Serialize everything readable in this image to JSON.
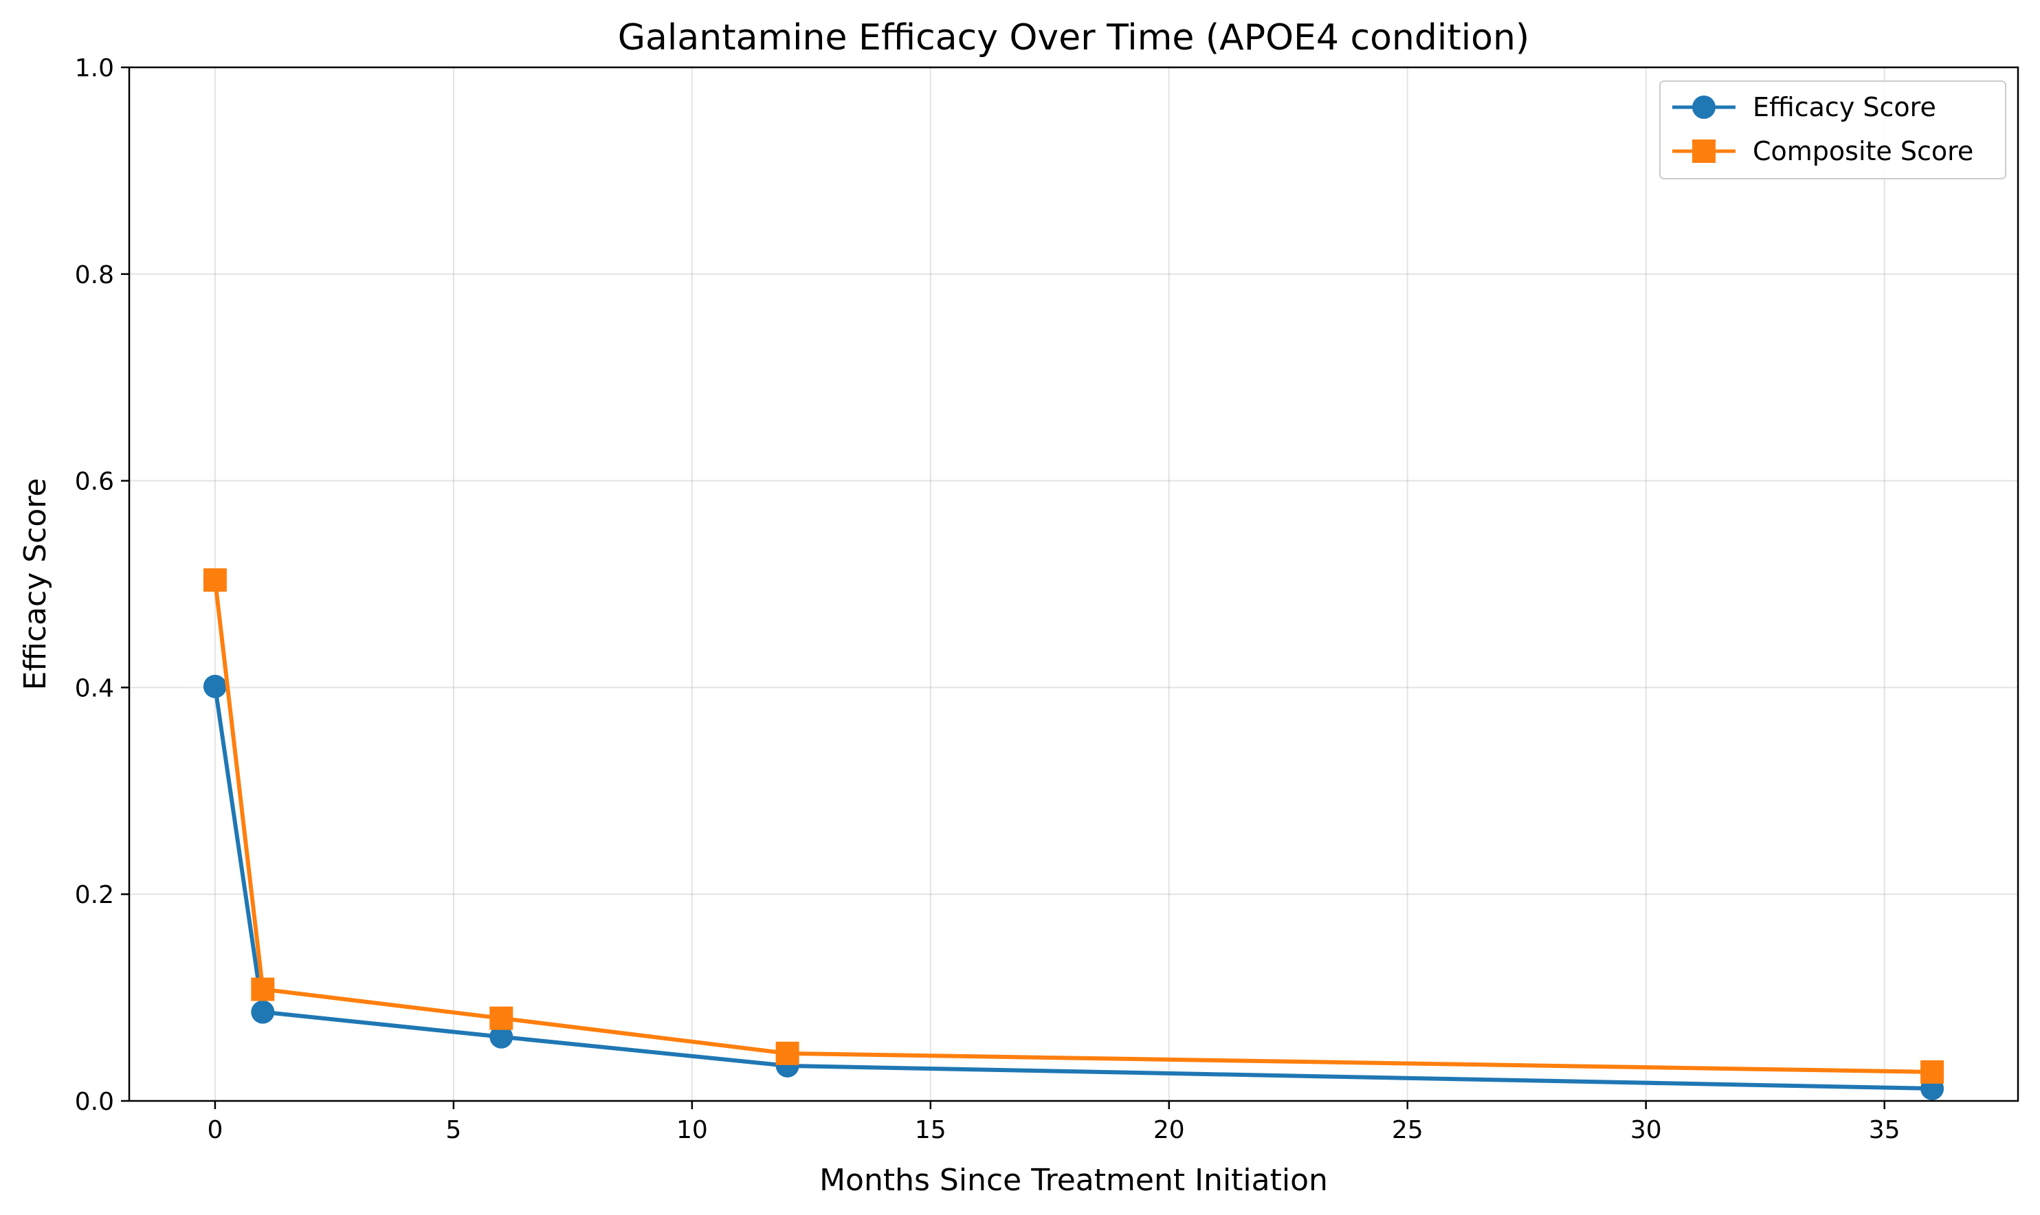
{
  "chart_data": {
    "type": "line",
    "title": "Galantamine Efficacy Over Time (APOE4 condition)",
    "xlabel": "Months Since Treatment Initiation",
    "ylabel": "Efficacy Score",
    "xlim": [
      -1.8,
      37.8
    ],
    "ylim": [
      0,
      1.0
    ],
    "xticks": [
      0,
      5,
      10,
      15,
      20,
      25,
      30,
      35
    ],
    "yticks": [
      0.0,
      0.2,
      0.4,
      0.6,
      0.8,
      1.0
    ],
    "xtick_labels": [
      "0",
      "5",
      "10",
      "15",
      "20",
      "25",
      "30",
      "35"
    ],
    "ytick_labels": [
      "0.0",
      "0.2",
      "0.4",
      "0.6",
      "0.8",
      "1.0"
    ],
    "grid": true,
    "legend_position": "top-right",
    "x": [
      0,
      1,
      6,
      12,
      36
    ],
    "series": [
      {
        "name": "Efficacy Score",
        "values": [
          0.401,
          0.086,
          0.062,
          0.034,
          0.012
        ],
        "color": "#1f77b4",
        "marker": "circle"
      },
      {
        "name": "Composite Score",
        "values": [
          0.504,
          0.108,
          0.08,
          0.046,
          0.028
        ],
        "color": "#ff7f0e",
        "marker": "square"
      }
    ]
  }
}
